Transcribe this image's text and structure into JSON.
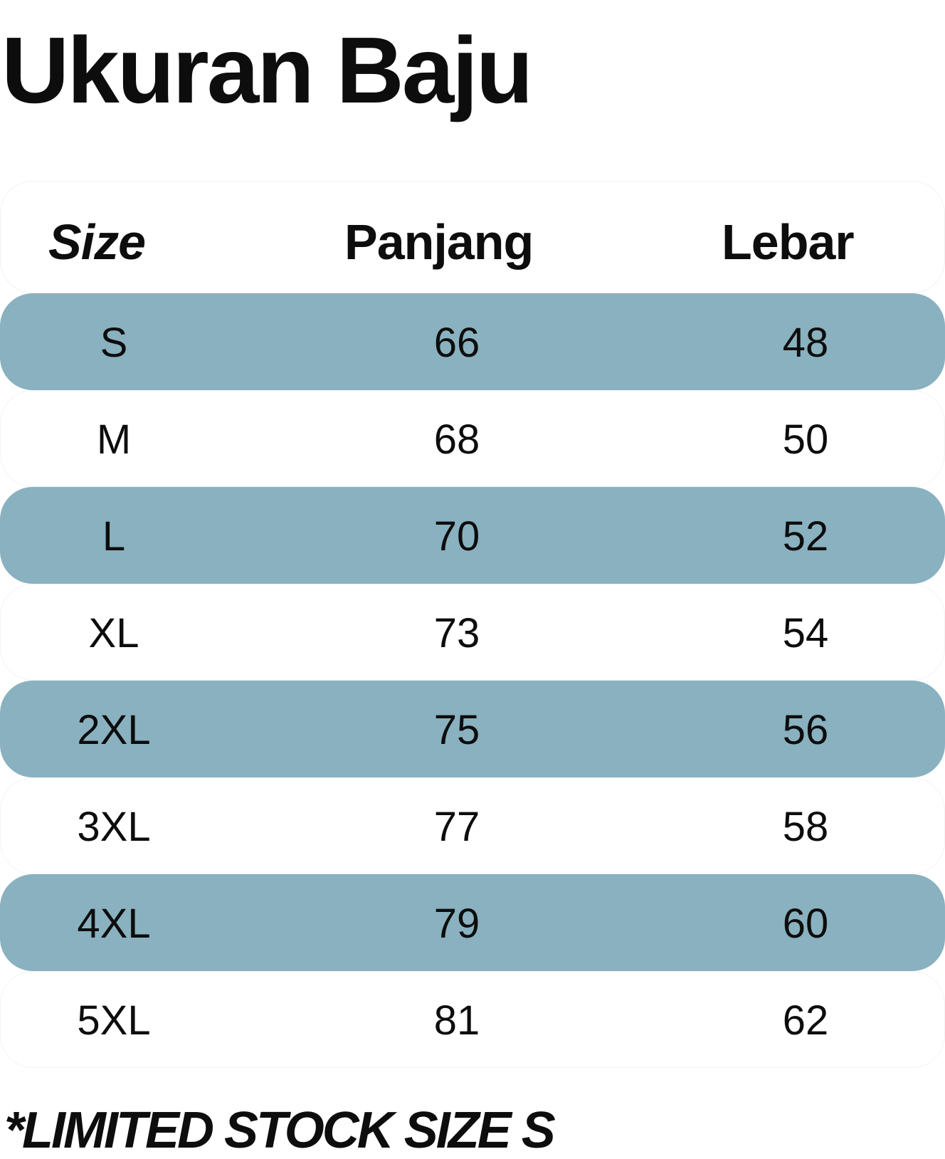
{
  "title": "Ukuran Baju",
  "table": {
    "headers": {
      "size": "Size",
      "panjang": "Panjang",
      "lebar": "Lebar"
    },
    "row_highlight_color": "#89b1bf",
    "rows": [
      {
        "size": "S",
        "panjang": "66",
        "lebar": "48"
      },
      {
        "size": "M",
        "panjang": "68",
        "lebar": "50"
      },
      {
        "size": "L",
        "panjang": "70",
        "lebar": "52"
      },
      {
        "size": "XL",
        "panjang": "73",
        "lebar": "54"
      },
      {
        "size": "2XL",
        "panjang": "75",
        "lebar": "56"
      },
      {
        "size": "3XL",
        "panjang": "77",
        "lebar": "58"
      },
      {
        "size": "4XL",
        "panjang": "79",
        "lebar": "60"
      },
      {
        "size": "5XL",
        "panjang": "81",
        "lebar": "62"
      }
    ]
  },
  "footnote": "*LIMITED STOCK SIZE S"
}
